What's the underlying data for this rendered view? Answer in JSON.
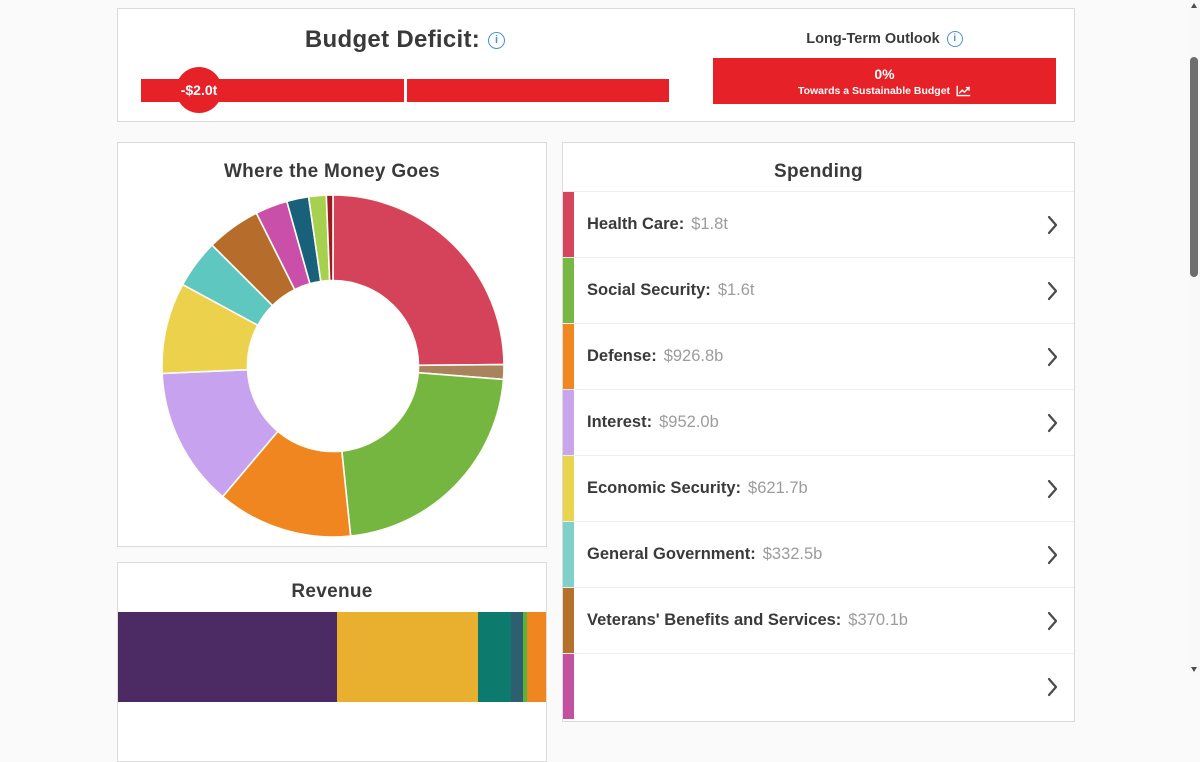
{
  "accent": {
    "red": "#e62128",
    "info_blue": "#4a90d9",
    "text_dark": "#3a3a3a",
    "text_gray": "#9c9c9c"
  },
  "budget_deficit": {
    "title": "Budget Deficit:",
    "marker_label": "-$2.0t"
  },
  "long_term_outlook": {
    "title": "Long-Term Outlook",
    "percent": "0%",
    "subtitle": "Towards a Sustainable Budget"
  },
  "where_money_goes": {
    "title": "Where the Money Goes"
  },
  "revenue": {
    "title": "Revenue"
  },
  "spending": {
    "title": "Spending",
    "items": [
      {
        "label": "Health Care:",
        "value": "$1.8t",
        "color": "#d5455c"
      },
      {
        "label": "Social Security:",
        "value": "$1.6t",
        "color": "#76b843"
      },
      {
        "label": "Defense:",
        "value": "$926.8b",
        "color": "#f0871f"
      },
      {
        "label": "Interest:",
        "value": "$952.0b",
        "color": "#c9a5ee"
      },
      {
        "label": "Economic Security:",
        "value": "$621.7b",
        "color": "#e8d44d"
      },
      {
        "label": "General Government:",
        "value": "$332.5b",
        "color": "#7fd0c9"
      },
      {
        "label": "Veterans' Benefits and Services:",
        "value": "$370.1b",
        "color": "#b5712c"
      },
      {
        "label": "",
        "value": "",
        "color": "#c2519f"
      }
    ]
  },
  "chart_data": [
    {
      "type": "pie",
      "title": "Where the Money Goes",
      "unit": "billions USD",
      "donut_hole_ratio": 0.5,
      "segments": [
        {
          "label": "Health Care",
          "value": 1800,
          "color": "#d5435a"
        },
        {
          "label": "",
          "value": 100,
          "color": "#a9835e"
        },
        {
          "label": "Social Security",
          "value": 1600,
          "color": "#74b63f"
        },
        {
          "label": "Defense",
          "value": 926.8,
          "color": "#f0861f"
        },
        {
          "label": "Interest",
          "value": 952.0,
          "color": "#c7a3ef"
        },
        {
          "label": "Economic Security",
          "value": 621.7,
          "color": "#ecd24c"
        },
        {
          "label": "General Government",
          "value": 332.5,
          "color": "#5ec7c0"
        },
        {
          "label": "Veterans' Benefits and Services",
          "value": 370.1,
          "color": "#b66d2b"
        },
        {
          "label": "",
          "value": 220,
          "color": "#ca4fa8"
        },
        {
          "label": "",
          "value": 150,
          "color": "#19607b"
        },
        {
          "label": "",
          "value": 120,
          "color": "#a6d14f"
        },
        {
          "label": "",
          "value": 45,
          "color": "#9c1a20"
        }
      ]
    },
    {
      "type": "bar",
      "title": "Revenue",
      "orientation": "horizontal-stacked",
      "segments": [
        {
          "label": "",
          "share": 0.512,
          "color": "#4c2a63"
        },
        {
          "label": "",
          "share": 0.33,
          "color": "#e9b02f"
        },
        {
          "label": "",
          "share": 0.077,
          "color": "#0c7a6c"
        },
        {
          "label": "",
          "share": 0.028,
          "color": "#2d5f70"
        },
        {
          "label": "",
          "share": 0.009,
          "color": "#5ab33a"
        },
        {
          "label": "",
          "share": 0.044,
          "color": "#f0861f"
        }
      ]
    }
  ]
}
